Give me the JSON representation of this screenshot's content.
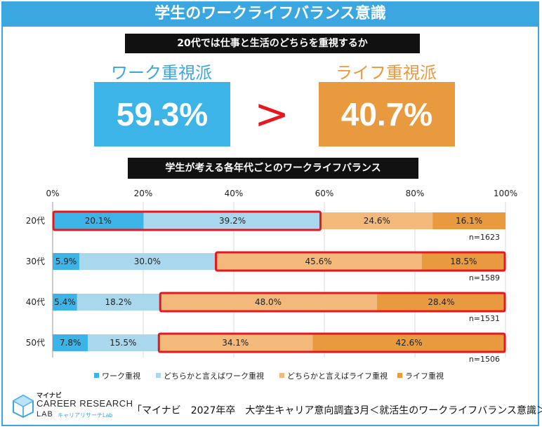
{
  "title": "学生のワークライフバランス意識",
  "subtitle": "20代では仕事と生活のどちらを重視するか",
  "work_label": "ワーク重視派",
  "life_label": "ライフ重視派",
  "work_value": "59.3%",
  "life_value": "40.7%",
  "comparison_symbol": ">",
  "chart_title": "学生が考える各年代ごとのワークライフバランス",
  "source": "「マイナビ　2027年卒　大学生キャリア意向調査3月＜就活生のワークライフバランス意識＞」",
  "logo": {
    "top": "マイナビ",
    "main": "CAREER RESEARCH",
    "lab": "LAB",
    "sub": "キャリアリサーチLab"
  },
  "colors": {
    "brand_blue": "#3aa7e0",
    "work": "#3db4e8",
    "work_light": "#a9d8ee",
    "life_light": "#f2b97a",
    "life": "#ea9a3e",
    "highlight": "#e8161e"
  },
  "chart_data": {
    "type": "bar",
    "orientation": "horizontal",
    "stacked": true,
    "title": "学生が考える各年代ごとのワークライフバランス",
    "categories": [
      "20代",
      "30代",
      "40代",
      "50代"
    ],
    "series": [
      {
        "name": "ワーク重視",
        "values": [
          20.1,
          5.9,
          5.4,
          7.8
        ],
        "color": "#3db4e8"
      },
      {
        "name": "どちらかと言えばワーク重視",
        "values": [
          39.2,
          30.0,
          18.2,
          15.5
        ],
        "color": "#a9d8ee"
      },
      {
        "name": "どちらかと言えばライフ重視",
        "values": [
          24.6,
          45.6,
          48.0,
          34.1
        ],
        "color": "#f2b97a"
      },
      {
        "name": "ライフ重視",
        "values": [
          16.1,
          18.5,
          28.4,
          42.6
        ],
        "color": "#ea9a3e"
      }
    ],
    "labels": [
      [
        "20.1%",
        "39.2%",
        "24.6%",
        "16.1%"
      ],
      [
        "5.9%",
        "30.0%",
        "45.6%",
        "18.5%"
      ],
      [
        "5.4%",
        "18.2%",
        "48.0%",
        "28.4%"
      ],
      [
        "7.8%",
        "15.5%",
        "34.1%",
        "42.6%"
      ]
    ],
    "sample_sizes": [
      "n=1623",
      "n=1589",
      "n=1531",
      "n=1506"
    ],
    "highlight": [
      "work",
      "life",
      "life",
      "life"
    ],
    "xlim": [
      0,
      100
    ],
    "xticks": [
      "0%",
      "20%",
      "40%",
      "60%",
      "80%",
      "100%"
    ],
    "legend_position": "bottom",
    "grid": true
  }
}
